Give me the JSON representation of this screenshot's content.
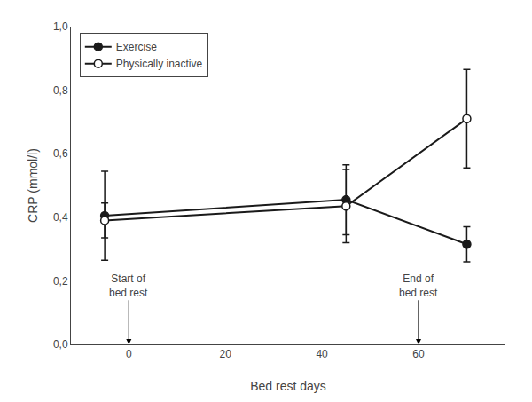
{
  "chart_data": {
    "type": "line",
    "x_label": "Bed rest days",
    "y_label": "CRP (mmol/l)",
    "xlim": [
      -12,
      78
    ],
    "xticks": [
      0,
      20,
      40,
      60
    ],
    "ylim": [
      0.0,
      1.0
    ],
    "yticks": [
      {
        "value": 0.0,
        "label": "0,0"
      },
      {
        "value": 0.2,
        "label": "0,2"
      },
      {
        "value": 0.4,
        "label": "0,4"
      },
      {
        "value": 0.6,
        "label": "0,6"
      },
      {
        "value": 0.8,
        "label": "0,8"
      },
      {
        "value": 1.0,
        "label": "1,0"
      }
    ],
    "grid": false,
    "legend": "upper left",
    "series": [
      {
        "name": "Exercise",
        "color": "#1a1a1a",
        "marker": "filled circle",
        "x": [
          -5,
          45,
          70
        ],
        "values": [
          0.405,
          0.455,
          0.315
        ],
        "errors": [
          0.14,
          0.11,
          0.055
        ]
      },
      {
        "name": "Physically inactive",
        "color": "#1a1a1a",
        "marker": "open circle",
        "x": [
          -5,
          45,
          70
        ],
        "values": [
          0.39,
          0.435,
          0.71
        ],
        "errors": [
          0.055,
          0.115,
          0.155
        ]
      }
    ],
    "annotations": [
      {
        "text": "Start of\nbed rest",
        "x": 0,
        "y": 0.185,
        "arrow_y": 0.0
      },
      {
        "text": "End of\nbed rest",
        "x": 60,
        "y": 0.185,
        "arrow_y": 0.0
      }
    ]
  }
}
